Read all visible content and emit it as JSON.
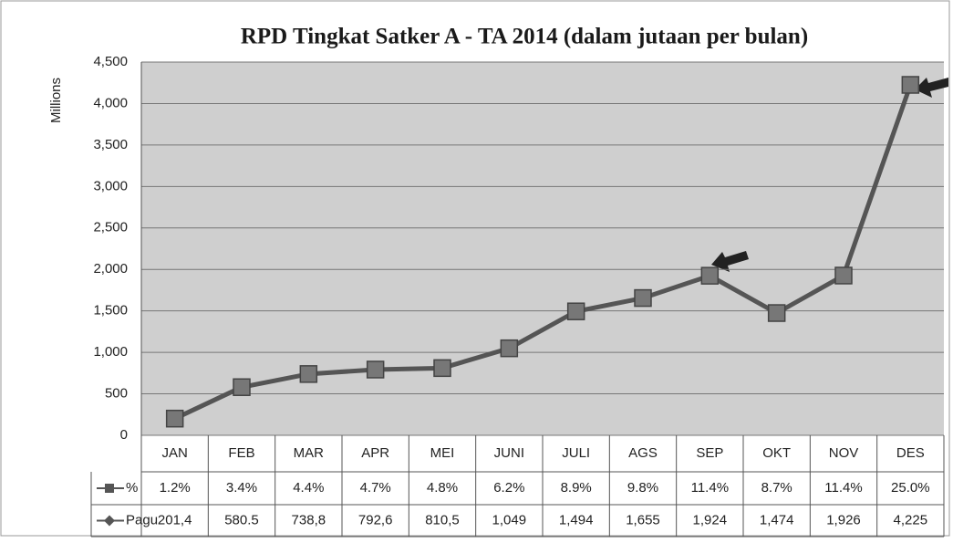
{
  "chart_data": {
    "type": "line",
    "title": "RPD Tingkat Satker A  -  TA 2014 (dalam jutaan per bulan)",
    "y_label": "Millions",
    "categories": [
      "JAN",
      "FEB",
      "MAR",
      "APR",
      "MEI",
      "JUNI",
      "JULI",
      "AGS",
      "SEP",
      "OKT",
      "NOV",
      "DES"
    ],
    "series": [
      {
        "name": "%",
        "color": "#555555",
        "values": [
          1.2,
          3.4,
          4.4,
          4.7,
          4.8,
          6.2,
          8.9,
          9.8,
          11.4,
          8.7,
          11.4,
          25.0
        ],
        "value_labels": [
          "1.2%",
          "3.4%",
          "4.4%",
          "4.7%",
          "4.8%",
          "6.2%",
          "8.9%",
          "9.8%",
          "11.4%",
          "8.7%",
          "11.4%",
          "25.0%"
        ]
      },
      {
        "name": "Pagu",
        "color": "#555555",
        "values": [
          201.4,
          580.5,
          738.8,
          792.6,
          810.5,
          1049,
          1494,
          1655,
          1924,
          1474,
          1926,
          4225
        ],
        "value_labels": [
          "201,4",
          "580.5",
          "738,8",
          "792,6",
          "810,5",
          "1,049",
          "1,494",
          "1,655",
          "1,924",
          "1,474",
          "1,926",
          "4,225"
        ]
      }
    ],
    "ylim": [
      0,
      4500
    ],
    "yticks": [
      0,
      500,
      {
        "value": 1000,
        "label": "1,000"
      },
      {
        "value": 1500,
        "label": "1,500"
      },
      {
        "value": 2000,
        "label": "2,000"
      },
      {
        "value": 2500,
        "label": "2,500"
      },
      {
        "value": 3000,
        "label": "3,000"
      },
      {
        "value": 3500,
        "label": "3,500"
      },
      {
        "value": 4000,
        "label": "4,000"
      },
      {
        "value": 4500,
        "label": "4,500"
      }
    ],
    "grid": true,
    "data_table": true
  }
}
